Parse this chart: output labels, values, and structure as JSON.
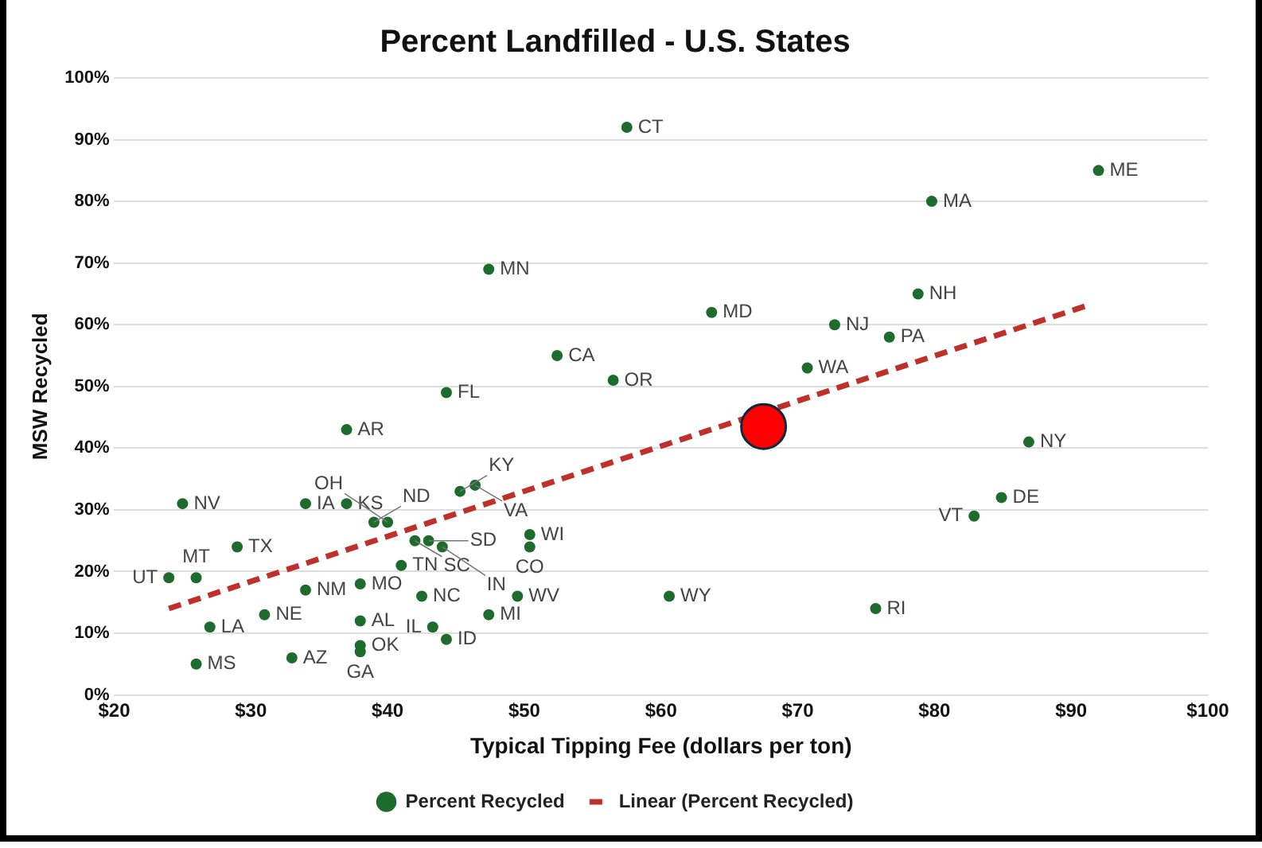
{
  "chart_data": {
    "type": "scatter",
    "title": "Percent Landfilled - U.S. States",
    "xlabel": "Typical Tipping Fee (dollars per ton)",
    "ylabel": "MSW Recycled",
    "xlim": [
      20,
      100
    ],
    "xticks": [
      {
        "value": 20,
        "label": "$20"
      },
      {
        "value": 30,
        "label": "$30"
      },
      {
        "value": 40,
        "label": "$40"
      },
      {
        "value": 50,
        "label": "$50"
      },
      {
        "value": 60,
        "label": "$60"
      },
      {
        "value": 70,
        "label": "$70"
      },
      {
        "value": 80,
        "label": "$80"
      },
      {
        "value": 90,
        "label": "$90"
      },
      {
        "value": 100,
        "label": "$100"
      }
    ],
    "ylim": [
      0,
      100
    ],
    "yticks": [
      {
        "value": 0,
        "label": "0%"
      },
      {
        "value": 10,
        "label": "10%"
      },
      {
        "value": 20,
        "label": "20%"
      },
      {
        "value": 30,
        "label": "30%"
      },
      {
        "value": 40,
        "label": "40%"
      },
      {
        "value": 50,
        "label": "50%"
      },
      {
        "value": 60,
        "label": "60%"
      },
      {
        "value": 70,
        "label": "70%"
      },
      {
        "value": 80,
        "label": "80%"
      },
      {
        "value": 90,
        "label": "90%"
      },
      {
        "value": 100,
        "label": "100%"
      }
    ],
    "grid": "y",
    "legend": "bottom",
    "series": [
      {
        "name": "Percent Recycled",
        "type": "scatter",
        "marker": "circle",
        "color": "#1e6b2e",
        "x": [
          24,
          26,
          25,
          26,
          27,
          29,
          31,
          33,
          34,
          34,
          37,
          37,
          38,
          38,
          38,
          38,
          39,
          40,
          41,
          42,
          43,
          44,
          45.3,
          46.4,
          42.5,
          43.3,
          44.3,
          47.4,
          49.5,
          50.4,
          50.4,
          57.5,
          47.4,
          52.4,
          56.5,
          44.3,
          92,
          79.8,
          78.8,
          63.7,
          72.7,
          76.7,
          70.7,
          86.9,
          84.9,
          82.9,
          60.6,
          75.7
        ],
        "values": [
          19,
          19,
          31,
          5,
          11,
          24,
          13,
          6,
          17,
          31,
          31,
          43,
          12,
          8,
          7,
          18,
          28,
          28,
          21,
          25,
          25,
          24,
          33,
          34,
          16,
          11,
          9,
          13,
          16,
          26,
          24,
          92,
          69,
          55,
          51,
          49,
          85,
          80,
          65,
          62,
          60,
          58,
          53,
          41,
          32,
          29,
          16,
          14
        ],
        "value_labels": [
          "UT",
          "MT",
          "NV",
          "MS",
          "LA",
          "TX",
          "NE",
          "AZ",
          "NM",
          "IA",
          "KS",
          "AR",
          "AL",
          "OK",
          "GA",
          "MO",
          "ND",
          "OH",
          "TN",
          "SC",
          "SD",
          "IN",
          "KY",
          "VA",
          "NC",
          "IL",
          "ID",
          "MI",
          "WV",
          "WI",
          "CO",
          "CT",
          "MN",
          "CA",
          "OR",
          "FL",
          "ME",
          "MA",
          "NH",
          "MD",
          "NJ",
          "PA",
          "WA",
          "NY",
          "DE",
          "VT",
          "WY",
          "RI"
        ]
      },
      {
        "name": "Linear (Percent Recycled)",
        "type": "line",
        "line_style": "dashed",
        "marker": "none",
        "color": "#c0302a",
        "x": [
          24,
          91
        ],
        "values": [
          14,
          63
        ]
      },
      {
        "type": "scatter",
        "marker": "circle",
        "color": "#ff0000",
        "x": [
          67.5
        ],
        "values": [
          43.5
        ]
      }
    ]
  }
}
